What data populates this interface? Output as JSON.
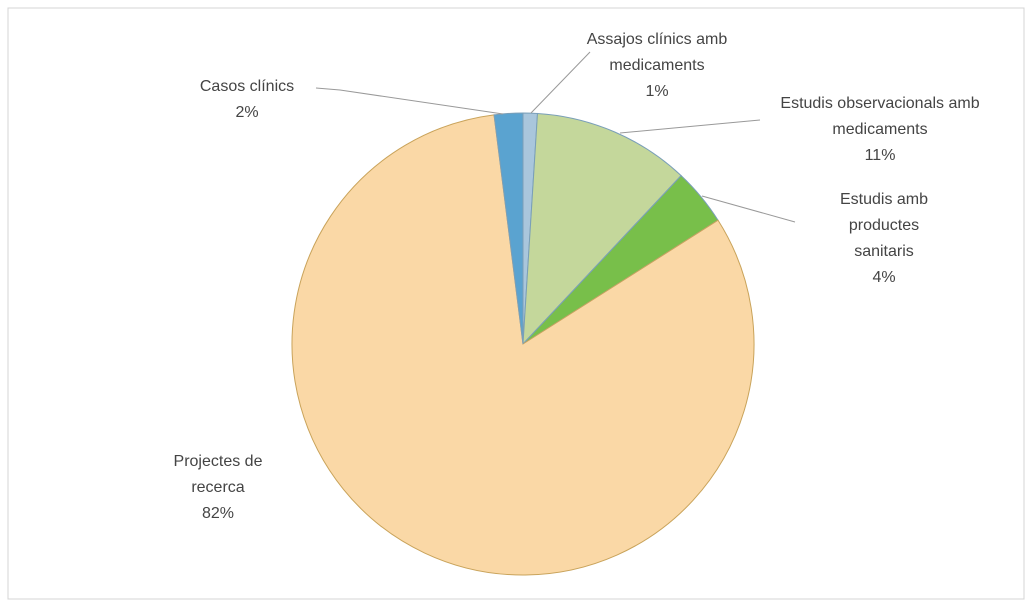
{
  "chart_data": {
    "type": "pie",
    "categories": [
      "Assajos clínics amb medicaments",
      "Estudis observacionals amb medicaments",
      "Estudis amb productes sanitaris",
      "Projectes de recerca",
      "Casos clínics"
    ],
    "values": [
      1,
      11,
      4,
      82,
      2
    ],
    "value_labels": [
      "1%",
      "11%",
      "4%",
      "82%",
      "2%"
    ],
    "colors": [
      "#a9c6dc",
      "#c4d79b",
      "#78bf4a",
      "#fad8a6",
      "#5aa3d0"
    ]
  }
}
